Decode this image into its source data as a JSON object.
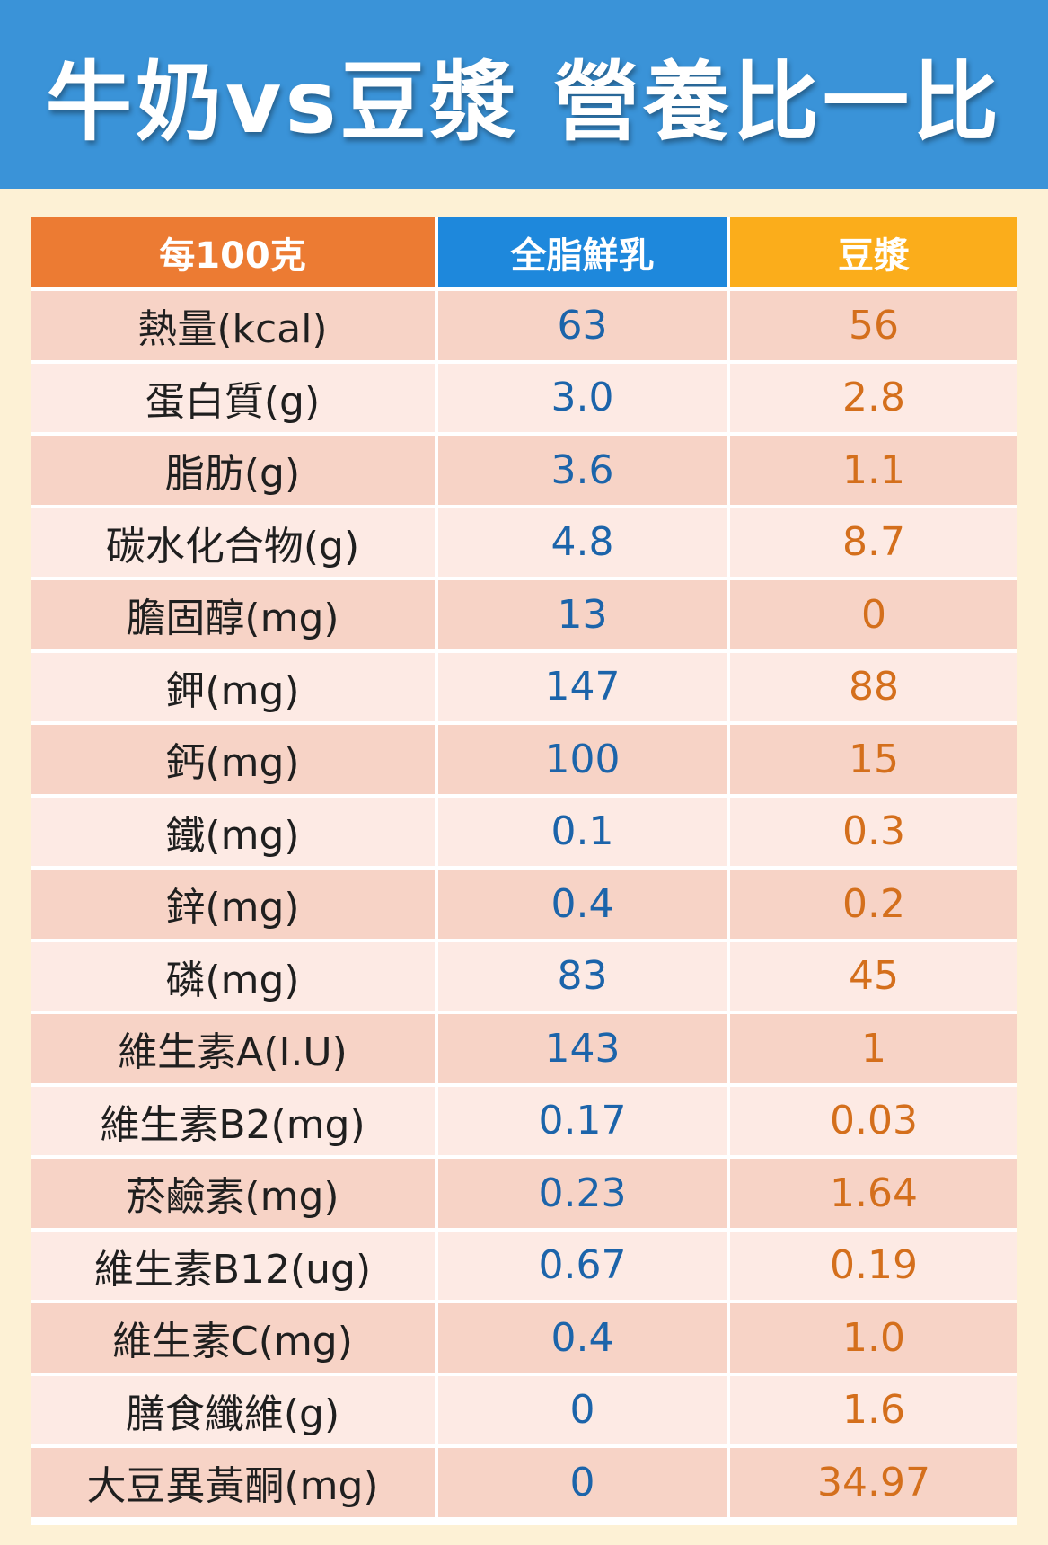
{
  "title": "牛奶vs豆漿 營養比一比",
  "colors": {
    "header_bg": "#3a93d8",
    "page_bg": "#fdf1d5",
    "label_header": "#ec7b33",
    "milk_header": "#1e88dc",
    "soy_header": "#fbad1b",
    "milk_value": "#1c64aa",
    "soy_value": "#d46f1c",
    "row_dark": "#f7d3c6",
    "row_light": "#fdeae4"
  },
  "table": {
    "headers": [
      "每100克",
      "全脂鮮乳",
      "豆漿"
    ],
    "rows": [
      {
        "label": "熱量(kcal)",
        "milk": "63",
        "soy": "56"
      },
      {
        "label": "蛋白質(g)",
        "milk": "3.0",
        "soy": "2.8"
      },
      {
        "label": "脂肪(g)",
        "milk": "3.6",
        "soy": "1.1"
      },
      {
        "label": "碳水化合物(g)",
        "milk": "4.8",
        "soy": "8.7"
      },
      {
        "label": "膽固醇(mg)",
        "milk": "13",
        "soy": "0"
      },
      {
        "label": "鉀(mg)",
        "milk": "147",
        "soy": "88"
      },
      {
        "label": "鈣(mg)",
        "milk": "100",
        "soy": "15"
      },
      {
        "label": "鐵(mg)",
        "milk": "0.1",
        "soy": "0.3"
      },
      {
        "label": "鋅(mg)",
        "milk": "0.4",
        "soy": "0.2"
      },
      {
        "label": "磷(mg)",
        "milk": "83",
        "soy": "45"
      },
      {
        "label": "維生素A(I.U)",
        "milk": "143",
        "soy": "1"
      },
      {
        "label": "維生素B2(mg)",
        "milk": "0.17",
        "soy": "0.03"
      },
      {
        "label": "菸鹼素(mg)",
        "milk": "0.23",
        "soy": "1.64"
      },
      {
        "label": "維生素B12(ug)",
        "milk": "0.67",
        "soy": "0.19"
      },
      {
        "label": "維生素C(mg)",
        "milk": "0.4",
        "soy": "1.0"
      },
      {
        "label": "膳食纖維(g)",
        "milk": "0",
        "soy": "1.6"
      },
      {
        "label": "大豆異黃酮(mg)",
        "milk": "0",
        "soy": "34.97"
      }
    ]
  }
}
